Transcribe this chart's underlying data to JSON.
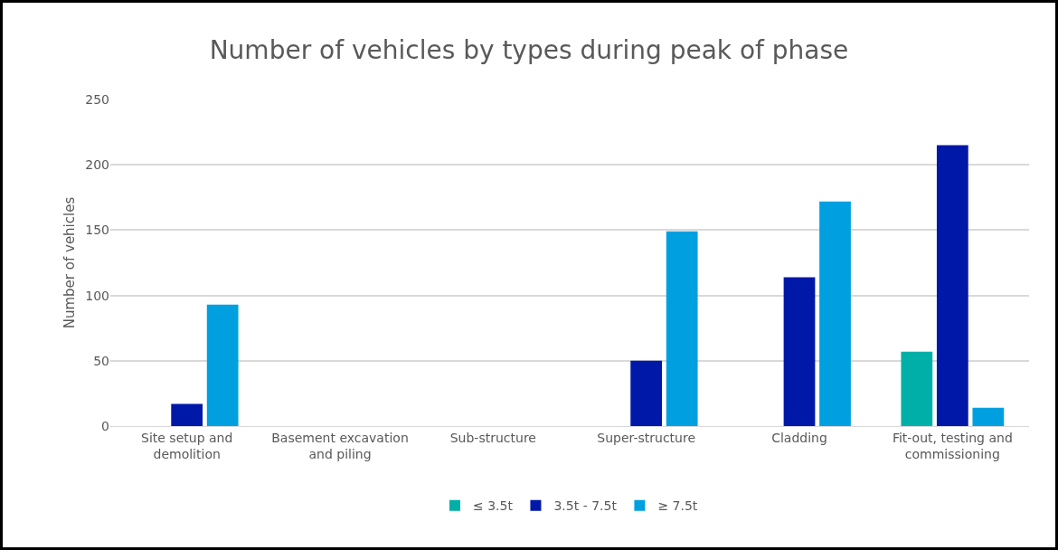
{
  "chart_data": {
    "type": "bar",
    "title": "Number of vehicles by types during peak of phase",
    "ylabel": "Number of vehicles",
    "categories": [
      "Site setup and\ndemolition",
      "Basement excavation\nand piling",
      "Sub-structure",
      "Super-structure",
      "Cladding",
      "Fit-out, testing and\ncommissioning"
    ],
    "series": [
      {
        "name": "≤ 3.5t",
        "color": "#00b0a8",
        "values": [
          0,
          0,
          0,
          0,
          0,
          57
        ]
      },
      {
        "name": "3.5t - 7.5t",
        "color": "#0018a8",
        "values": [
          17,
          0,
          0,
          50,
          114,
          215
        ]
      },
      {
        "name": "≥ 7.5t",
        "color": "#00a0e0",
        "values": [
          93,
          0,
          0,
          149,
          172,
          14
        ]
      }
    ],
    "ylim": [
      0,
      250
    ],
    "yticks": [
      0,
      50,
      100,
      150,
      200,
      250
    ],
    "grid": "y",
    "legend": "bottom"
  }
}
